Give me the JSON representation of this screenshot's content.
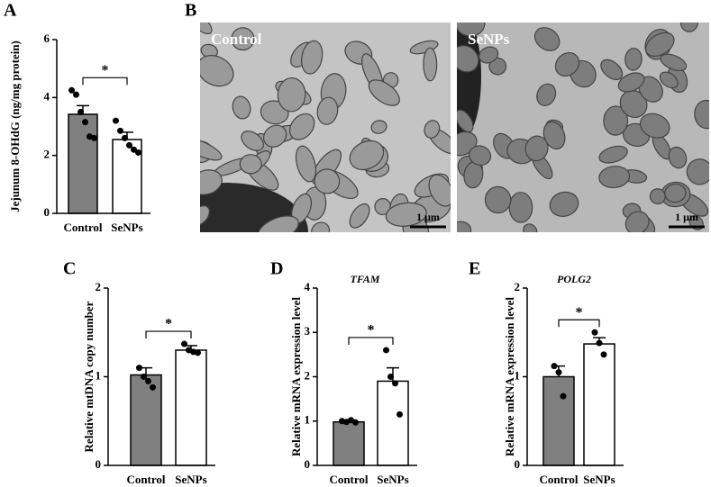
{
  "chart_data": [
    {
      "type": "bar",
      "panel": "A",
      "ylabel": "Jejunum 8-OHdG (ng/mg protein)",
      "categories": [
        "Control",
        "SeNPs"
      ],
      "series": [
        {
          "values": [
            3.42,
            2.55
          ],
          "errors": [
            0.3,
            0.25
          ],
          "colors": [
            "#808080",
            "#ffffff"
          ],
          "points": [
            [
              4.25,
              4.1,
              3.5,
              3.15,
              2.65,
              2.6
            ],
            [
              3.2,
              2.85,
              2.6,
              2.35,
              2.2,
              2.1
            ]
          ]
        }
      ],
      "ylim": [
        0,
        6
      ],
      "yticks": [
        0,
        2,
        4,
        6
      ],
      "annotation": "*"
    },
    {
      "type": "bar",
      "panel": "C",
      "ylabel": "Relative mtDNA copy number",
      "categories": [
        "Control",
        "SeNPs"
      ],
      "series": [
        {
          "values": [
            1.02,
            1.3
          ],
          "errors": [
            0.08,
            0.05
          ],
          "colors": [
            "#808080",
            "#ffffff"
          ],
          "points": [
            [
              1.1,
              1.0,
              0.95,
              0.88
            ],
            [
              1.37,
              1.3,
              1.28,
              1.27
            ]
          ]
        }
      ],
      "ylim": [
        0,
        2
      ],
      "yticks": [
        0,
        1,
        2
      ],
      "annotation": "*"
    },
    {
      "type": "bar",
      "panel": "D",
      "title": "TFAM",
      "ylabel": "Relative mRNA expression level",
      "categories": [
        "Control",
        "SeNPs"
      ],
      "series": [
        {
          "values": [
            0.98,
            1.9
          ],
          "errors": [
            0.02,
            0.3
          ],
          "colors": [
            "#808080",
            "#ffffff"
          ],
          "points": [
            [
              1.0,
              0.98,
              1.02,
              0.97
            ],
            [
              2.6,
              2.0,
              1.85,
              1.15
            ]
          ]
        }
      ],
      "ylim": [
        0,
        4
      ],
      "yticks": [
        0,
        1,
        2,
        3,
        4
      ],
      "annotation": "*"
    },
    {
      "type": "bar",
      "panel": "E",
      "title": "POLG2",
      "ylabel": "Relative mRNA expression level",
      "categories": [
        "Control",
        "SeNPs"
      ],
      "series": [
        {
          "values": [
            1.0,
            1.37
          ],
          "errors": [
            0.12,
            0.07
          ],
          "colors": [
            "#808080",
            "#ffffff"
          ],
          "points": [
            [
              1.12,
              1.05,
              0.78
            ],
            [
              1.5,
              1.38,
              1.25
            ]
          ]
        }
      ],
      "ylim": [
        0,
        2
      ],
      "yticks": [
        0,
        1,
        2
      ],
      "annotation": "*"
    }
  ],
  "figure_b": {
    "panel": "B",
    "images": [
      {
        "label": "Control",
        "scale_bar": "1 μm"
      },
      {
        "label": "SeNPs",
        "scale_bar": "1 μm"
      }
    ]
  }
}
